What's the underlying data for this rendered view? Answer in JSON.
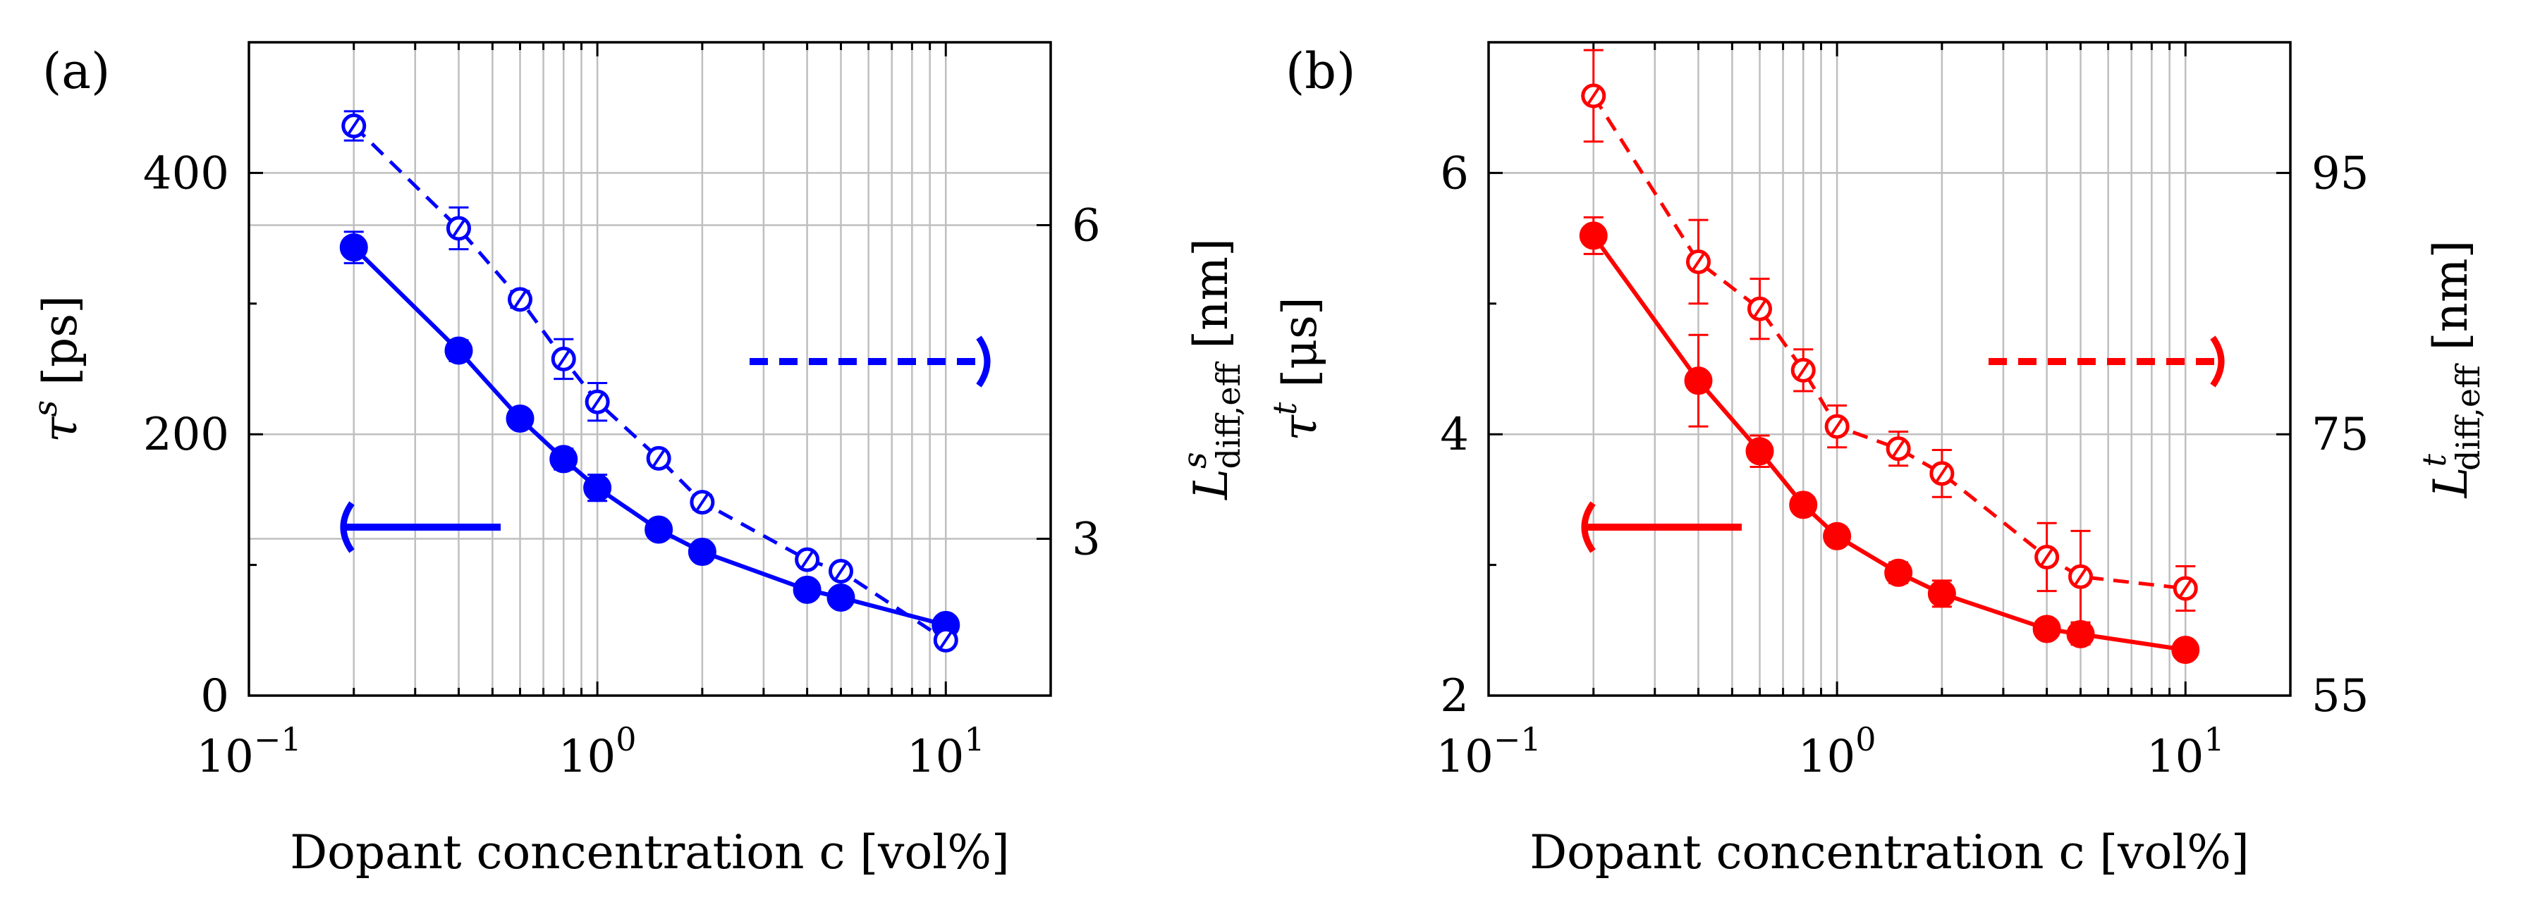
{
  "chart_data": [
    {
      "type": "line",
      "panel_label": "(a)",
      "color": "#0000ff",
      "xscale": "log",
      "xlim": [
        0.1,
        20
      ],
      "x_ticks": [
        {
          "value": 0.1,
          "base": "10",
          "exp": "−1"
        },
        {
          "value": 1,
          "base": "10",
          "exp": "0"
        },
        {
          "value": 10,
          "base": "10",
          "exp": "1"
        }
      ],
      "xlabel": "Dopant concentration c [vol%]",
      "ylabel_left": {
        "sym": "τ",
        "sup": "s",
        "unit": "[ps]"
      },
      "ylabel_right": {
        "sym": "L",
        "sup": "s",
        "sub": "diff,eff",
        "unit": "[nm]"
      },
      "ylim_left": [
        0,
        500
      ],
      "y_ticks_left": [
        0,
        200,
        400
      ],
      "ylim_right": [
        1.5,
        7.75
      ],
      "y_ticks_right": [
        3,
        6
      ],
      "y_tick_labels_right": [
        "3",
        "6"
      ],
      "left_arrow_direction": "left",
      "right_arrow_direction": "right",
      "grid": true,
      "series": [
        {
          "name": "tau_s",
          "axis": "left",
          "style": "solid-filled",
          "x": [
            0.2,
            0.4,
            0.6,
            0.8,
            1.0,
            1.5,
            2.0,
            4.0,
            5.0,
            10.0
          ],
          "values": [
            343,
            264,
            212,
            181,
            159,
            127,
            110,
            81,
            75,
            54
          ],
          "errors": [
            12,
            8,
            6,
            8,
            10,
            6,
            6,
            5,
            6,
            5
          ]
        },
        {
          "name": "L_s_diff_eff",
          "axis": "right",
          "style": "dashed-open",
          "x": [
            0.2,
            0.4,
            0.6,
            0.8,
            1.0,
            1.5,
            2.0,
            4.0,
            5.0,
            10.0
          ],
          "values": [
            6.95,
            5.97,
            5.29,
            4.72,
            4.31,
            3.77,
            3.35,
            2.8,
            2.69,
            2.03
          ],
          "errors": [
            0.14,
            0.2,
            0.08,
            0.19,
            0.18,
            0.06,
            0.07,
            0.04,
            0.04,
            0.05
          ]
        }
      ]
    },
    {
      "type": "line",
      "panel_label": "(b)",
      "color": "#ff0000",
      "xscale": "log",
      "xlim": [
        0.1,
        20
      ],
      "x_ticks": [
        {
          "value": 0.1,
          "base": "10",
          "exp": "−1"
        },
        {
          "value": 1,
          "base": "10",
          "exp": "0"
        },
        {
          "value": 10,
          "base": "10",
          "exp": "1"
        }
      ],
      "xlabel": "Dopant concentration c [vol%]",
      "ylabel_left": {
        "sym": "τ",
        "sup": "t",
        "unit": "[μs]"
      },
      "ylabel_right": {
        "sym": "L",
        "sup": "t",
        "sub": "diff,eff",
        "unit": "[nm]"
      },
      "ylim_left": [
        2,
        7
      ],
      "y_ticks_left": [
        2,
        4,
        6
      ],
      "ylim_right": [
        55,
        105
      ],
      "y_ticks_right": [
        55,
        75,
        95
      ],
      "y_tick_labels_right": [
        "55",
        "75",
        "95"
      ],
      "left_arrow_direction": "left",
      "right_arrow_direction": "right",
      "grid": true,
      "series": [
        {
          "name": "tau_t",
          "axis": "left",
          "style": "solid-filled",
          "x": [
            0.2,
            0.4,
            0.6,
            0.8,
            1.0,
            1.5,
            2.0,
            4.0,
            5.0,
            10.0
          ],
          "values": [
            5.52,
            4.41,
            3.87,
            3.46,
            3.22,
            2.94,
            2.78,
            2.51,
            2.47,
            2.35
          ],
          "errors": [
            0.14,
            0.35,
            0.12,
            0.07,
            0.06,
            0.08,
            0.1,
            0.06,
            0.08,
            0.05
          ]
        },
        {
          "name": "L_t_diff_eff",
          "axis": "right",
          "style": "dashed-open",
          "x": [
            0.2,
            0.4,
            0.6,
            0.8,
            1.0,
            1.5,
            2.0,
            4.0,
            5.0,
            10.0
          ],
          "values": [
            100.9,
            88.2,
            84.6,
            79.9,
            75.6,
            73.9,
            72.0,
            65.6,
            64.1,
            63.2
          ],
          "errors": [
            3.5,
            3.2,
            2.3,
            1.6,
            1.6,
            1.3,
            1.8,
            2.6,
            3.5,
            1.7
          ]
        }
      ]
    }
  ]
}
